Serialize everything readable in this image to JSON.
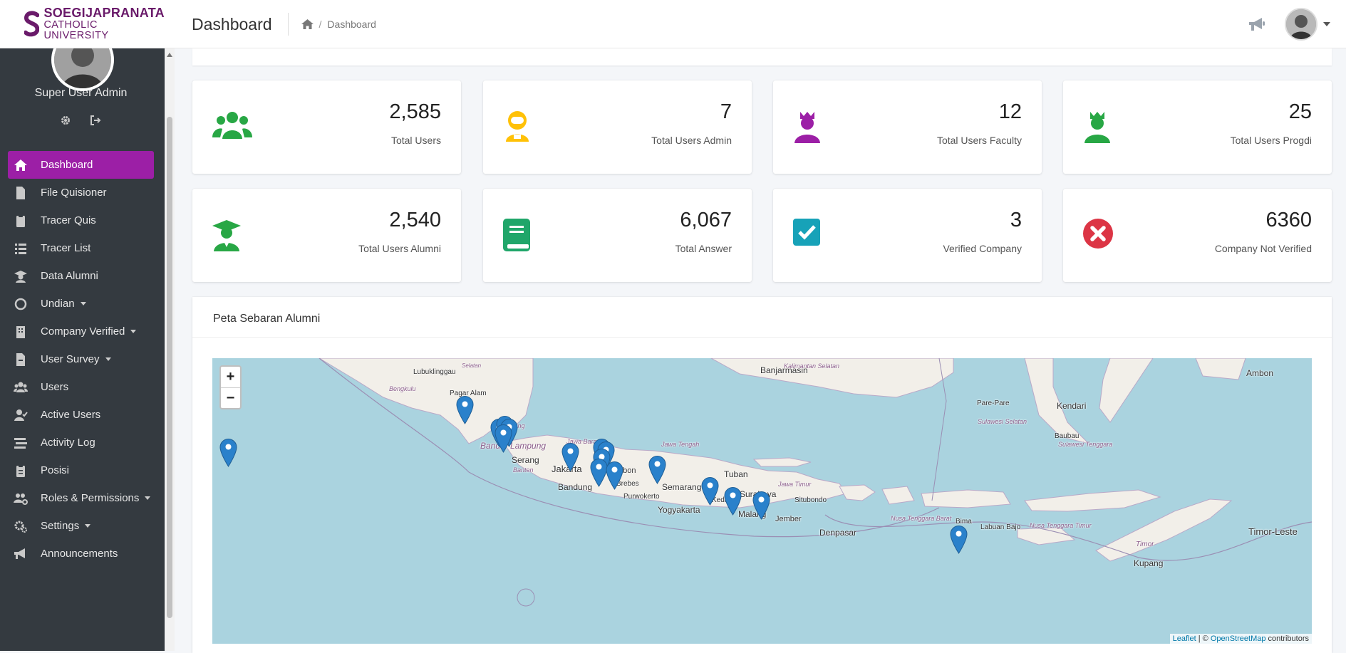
{
  "header": {
    "logo_line1": "SOEGIJAPRANATA",
    "logo_line2": "CATHOLIC UNIVERSITY",
    "page_title": "Dashboard",
    "breadcrumb_current": "Dashboard",
    "breadcrumb_separator": "/"
  },
  "sidebar": {
    "user_name": "Super User Admin",
    "items": [
      {
        "label": "Dashboard",
        "icon": "home-icon",
        "active": true
      },
      {
        "label": "File Quisioner",
        "icon": "file-icon"
      },
      {
        "label": "Tracer Quis",
        "icon": "clipboard-icon"
      },
      {
        "label": "Tracer List",
        "icon": "list-icon"
      },
      {
        "label": "Data Alumni",
        "icon": "graduate-icon"
      },
      {
        "label": "Undian",
        "icon": "circle-notch-icon",
        "dropdown": true
      },
      {
        "label": "Company Verified",
        "icon": "building-icon",
        "dropdown": true
      },
      {
        "label": "User Survey",
        "icon": "file-survey-icon",
        "dropdown": true
      },
      {
        "label": "Users",
        "icon": "users-icon"
      },
      {
        "label": "Active Users",
        "icon": "user-check-icon"
      },
      {
        "label": "Activity Log",
        "icon": "stream-icon"
      },
      {
        "label": "Posisi",
        "icon": "clipboard-list-icon"
      },
      {
        "label": "Roles & Permissions",
        "icon": "users-cog-icon",
        "dropdown": true
      },
      {
        "label": "Settings",
        "icon": "cogs-icon",
        "dropdown": true
      },
      {
        "label": "Announcements",
        "icon": "bullhorn-icon"
      }
    ]
  },
  "stats": [
    {
      "value": "2,585",
      "label": "Total Users",
      "icon": "users-icon",
      "color": "#28a745"
    },
    {
      "value": "7",
      "label": "Total Users Admin",
      "icon": "user-astronaut-icon",
      "color": "#ffc107"
    },
    {
      "value": "12",
      "label": "Total Users Faculty",
      "icon": "user-crown-icon",
      "color": "#9c1fa6"
    },
    {
      "value": "25",
      "label": "Total Users Progdi",
      "icon": "user-crown-icon",
      "color": "#28a745"
    },
    {
      "value": "2,540",
      "label": "Total Users Alumni",
      "icon": "user-graduate-icon",
      "color": "#28a745"
    },
    {
      "value": "6,067",
      "label": "Total Answer",
      "icon": "book-icon",
      "color": "#20a66a"
    },
    {
      "value": "3",
      "label": "Verified Company",
      "icon": "check-square-icon",
      "color": "#17a2b8"
    },
    {
      "value": "6360",
      "label": "Company Not Verified",
      "icon": "times-circle-icon",
      "color": "#dc3545"
    }
  ],
  "map": {
    "title": "Peta Sebaran Alumni",
    "zoom_in": "+",
    "zoom_out": "−",
    "attribution_leaflet": "Leaflet",
    "attribution_sep": " | © ",
    "attribution_osm": "OpenStreetMap",
    "attribution_tail": " contributors",
    "place_labels": [
      "Lubuklinggau",
      "Selatan",
      "Bengkulu",
      "Pagar Alam",
      "Lampung",
      "Bandar Lampung",
      "Serang",
      "Banten",
      "Jakarta",
      "Jawa Barat",
      "Cirebon",
      "Bandung",
      "Brebes",
      "Purwokerto",
      "Jawa Tengah",
      "Semarang",
      "Yogyakarta",
      "Banjarmasin",
      "Kalimantan Selatan",
      "Tuban",
      "Surabaya",
      "Jawa Timur",
      "Kediri",
      "Malang",
      "Jember",
      "Situbondo",
      "Denpasar",
      "Nusa Tenggara Barat",
      "Bima",
      "Labuan Bajo",
      "Nusa Tenggara Timur",
      "Timor",
      "Timor-Leste",
      "Kupang",
      "Pare-Pare",
      "Sulawesi Selatan",
      "Kendari",
      "Baubau",
      "Sulawesi Tenggara",
      "Ambon"
    ]
  }
}
